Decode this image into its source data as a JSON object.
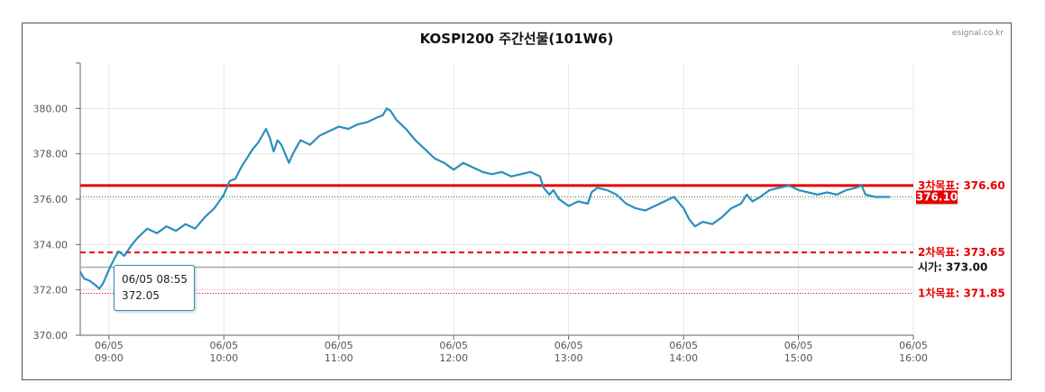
{
  "chart_data": {
    "type": "line",
    "title": "KOSPI200 주간선물(101W6)",
    "credit": "esignal.co.kr",
    "xlabel": "",
    "ylabel": "",
    "ylim": [
      370,
      382
    ],
    "xlim": [
      "08:45",
      "16:00"
    ],
    "y_ticks": [
      "370.00",
      "372.00",
      "374.00",
      "376.00",
      "378.00",
      "380.00"
    ],
    "x_ticks": [
      {
        "date": "06/05",
        "time": "09:00"
      },
      {
        "date": "06/05",
        "time": "10:00"
      },
      {
        "date": "06/05",
        "time": "11:00"
      },
      {
        "date": "06/05",
        "time": "12:00"
      },
      {
        "date": "06/05",
        "time": "13:00"
      },
      {
        "date": "06/05",
        "time": "14:00"
      },
      {
        "date": "06/05",
        "time": "15:00"
      },
      {
        "date": "06/05",
        "time": "16:00"
      }
    ],
    "series": [
      {
        "color": "#2a8fbd",
        "points": [
          [
            "08:45",
            372.8
          ],
          [
            "08:47",
            372.5
          ],
          [
            "08:50",
            372.4
          ],
          [
            "08:53",
            372.2
          ],
          [
            "08:55",
            372.05
          ],
          [
            "08:57",
            372.3
          ],
          [
            "09:00",
            372.9
          ],
          [
            "09:03",
            373.4
          ],
          [
            "09:05",
            373.7
          ],
          [
            "09:08",
            373.5
          ],
          [
            "09:12",
            374.0
          ],
          [
            "09:15",
            374.3
          ],
          [
            "09:20",
            374.7
          ],
          [
            "09:25",
            374.5
          ],
          [
            "09:30",
            374.8
          ],
          [
            "09:35",
            374.6
          ],
          [
            "09:40",
            374.9
          ],
          [
            "09:45",
            374.7
          ],
          [
            "09:50",
            375.2
          ],
          [
            "09:55",
            375.6
          ],
          [
            "10:00",
            376.2
          ],
          [
            "10:03",
            376.8
          ],
          [
            "10:06",
            376.9
          ],
          [
            "10:09",
            377.4
          ],
          [
            "10:12",
            377.8
          ],
          [
            "10:15",
            378.2
          ],
          [
            "10:18",
            378.5
          ],
          [
            "10:20",
            378.8
          ],
          [
            "10:22",
            379.1
          ],
          [
            "10:24",
            378.7
          ],
          [
            "10:26",
            378.1
          ],
          [
            "10:28",
            378.6
          ],
          [
            "10:30",
            378.4
          ],
          [
            "10:32",
            378.0
          ],
          [
            "10:34",
            377.6
          ],
          [
            "10:36",
            378.0
          ],
          [
            "10:40",
            378.6
          ],
          [
            "10:45",
            378.4
          ],
          [
            "10:50",
            378.8
          ],
          [
            "10:55",
            379.0
          ],
          [
            "11:00",
            379.2
          ],
          [
            "11:05",
            379.1
          ],
          [
            "11:10",
            379.3
          ],
          [
            "11:15",
            379.4
          ],
          [
            "11:20",
            379.6
          ],
          [
            "11:23",
            379.7
          ],
          [
            "11:25",
            380.0
          ],
          [
            "11:27",
            379.9
          ],
          [
            "11:30",
            379.5
          ],
          [
            "11:35",
            379.1
          ],
          [
            "11:40",
            378.6
          ],
          [
            "11:45",
            378.2
          ],
          [
            "11:50",
            377.8
          ],
          [
            "11:55",
            377.6
          ],
          [
            "12:00",
            377.3
          ],
          [
            "12:05",
            377.6
          ],
          [
            "12:10",
            377.4
          ],
          [
            "12:15",
            377.2
          ],
          [
            "12:20",
            377.1
          ],
          [
            "12:25",
            377.2
          ],
          [
            "12:30",
            377.0
          ],
          [
            "12:35",
            377.1
          ],
          [
            "12:40",
            377.2
          ],
          [
            "12:45",
            377.0
          ],
          [
            "12:47",
            376.5
          ],
          [
            "12:50",
            376.2
          ],
          [
            "12:52",
            376.4
          ],
          [
            "12:55",
            376.0
          ],
          [
            "13:00",
            375.7
          ],
          [
            "13:05",
            375.9
          ],
          [
            "13:10",
            375.8
          ],
          [
            "13:12",
            376.3
          ],
          [
            "13:15",
            376.5
          ],
          [
            "13:20",
            376.4
          ],
          [
            "13:25",
            376.2
          ],
          [
            "13:30",
            375.8
          ],
          [
            "13:35",
            375.6
          ],
          [
            "13:40",
            375.5
          ],
          [
            "13:45",
            375.7
          ],
          [
            "13:50",
            375.9
          ],
          [
            "13:55",
            376.1
          ],
          [
            "14:00",
            375.6
          ],
          [
            "14:03",
            375.1
          ],
          [
            "14:06",
            374.8
          ],
          [
            "14:10",
            375.0
          ],
          [
            "14:15",
            374.9
          ],
          [
            "14:20",
            375.2
          ],
          [
            "14:25",
            375.6
          ],
          [
            "14:30",
            375.8
          ],
          [
            "14:33",
            376.2
          ],
          [
            "14:36",
            375.9
          ],
          [
            "14:40",
            376.1
          ],
          [
            "14:45",
            376.4
          ],
          [
            "14:50",
            376.5
          ],
          [
            "14:55",
            376.6
          ],
          [
            "15:00",
            376.4
          ],
          [
            "15:05",
            376.3
          ],
          [
            "15:10",
            376.2
          ],
          [
            "15:15",
            376.3
          ],
          [
            "15:20",
            376.2
          ],
          [
            "15:25",
            376.4
          ],
          [
            "15:30",
            376.5
          ],
          [
            "15:33",
            376.6
          ],
          [
            "15:35",
            376.2
          ],
          [
            "15:40",
            376.1
          ],
          [
            "15:45",
            376.1
          ],
          [
            "15:48",
            376.1
          ]
        ]
      }
    ],
    "reference_lines": [
      {
        "label": "3차목표: 376.60",
        "value": 376.6,
        "color": "#e60000",
        "style": "solid"
      },
      {
        "label": "376.10",
        "value": 376.1,
        "color": "#2e7d32",
        "style": "dotted",
        "badge_color": "#e60000"
      },
      {
        "label": "2차목표: 373.65",
        "value": 373.65,
        "color": "#e60000",
        "style": "dashed"
      },
      {
        "label": "시가: 373.00",
        "value": 373.0,
        "color": "#aaaaaa",
        "style": "solid",
        "label_color": "#111111"
      },
      {
        "label": "1차목표: 371.85",
        "value": 371.85,
        "color": "#e60000",
        "style": "dotted"
      }
    ],
    "tooltip": {
      "time": "06/05 08:55",
      "value": "372.05"
    },
    "grid": true
  }
}
